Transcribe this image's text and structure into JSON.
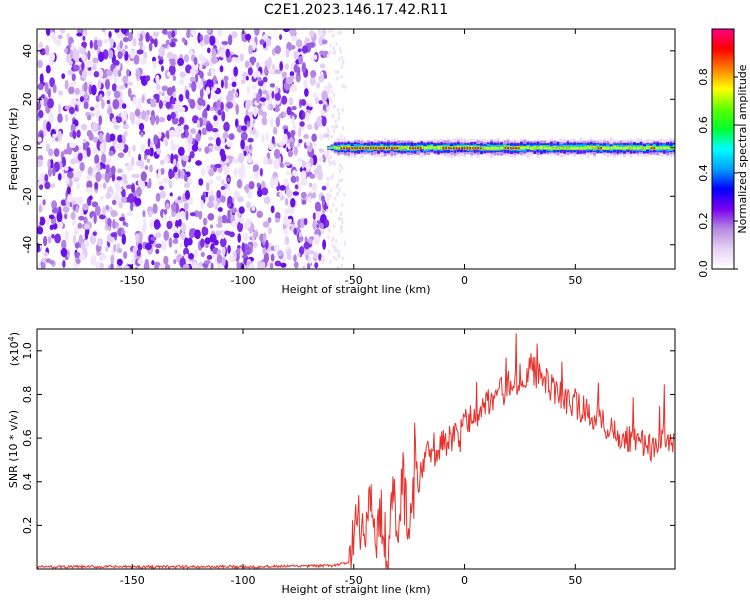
{
  "title": "C2E1.2023.146.17.42.R11",
  "chart_data": [
    {
      "type": "heatmap",
      "xlabel": "Height of straight line (km)",
      "ylabel": "Frequency (Hz)",
      "xlim": [
        -193,
        95
      ],
      "ylim": [
        -50,
        49
      ],
      "x_ticks": [
        -150,
        -100,
        -50,
        0,
        50
      ],
      "y_ticks": [
        -40,
        -20,
        0,
        20,
        40
      ],
      "noise_region_x": [
        -193,
        -62
      ],
      "signal_region_x": [
        -62,
        95
      ],
      "signal_frequency_hz": 0,
      "colorbar": {
        "label": "Normalized spectral amplitude",
        "range": [
          0.0,
          1.0
        ],
        "ticks": [
          "0.0",
          "0.2",
          "0.4",
          "0.6",
          "0.8"
        ],
        "colors": [
          "#ffffff",
          "#e8d2f5",
          "#b78be0",
          "#7a00ee",
          "#0000ff",
          "#00a0ff",
          "#00ffff",
          "#00ff30",
          "#60ff00",
          "#ffff00",
          "#ff8000",
          "#ff0000",
          "#ff0080"
        ]
      }
    },
    {
      "type": "line",
      "xlabel": "Height of straight line (km)",
      "ylabel": "SNR (10 * v/v)",
      "y_multiplier": "(x10",
      "y_multiplier_exp": "4",
      "y_multiplier_close": ")",
      "xlim": [
        -193,
        95
      ],
      "ylim": [
        0,
        1.1
      ],
      "x_ticks": [
        -150,
        -100,
        -50,
        0,
        50
      ],
      "y_ticks": [
        "0.2",
        "0.4",
        "0.6",
        "0.8",
        "1.0"
      ],
      "color": "#e8302a",
      "series": [
        {
          "x": [
            -193,
            -150,
            -100,
            -60,
            -52,
            -50,
            -48,
            -45,
            -42,
            -40,
            -38,
            -35,
            -32,
            -30,
            -28,
            -25,
            -22,
            -20,
            -18,
            -15,
            -12,
            -10,
            -8,
            -5,
            -2,
            0,
            3,
            6,
            9,
            12,
            15,
            18,
            20,
            22,
            24,
            26,
            28,
            30,
            32,
            35,
            38,
            40,
            45,
            50,
            55,
            60,
            65,
            70,
            75,
            80,
            85,
            90,
            95
          ],
          "y": [
            0.01,
            0.01,
            0.01,
            0.015,
            0.03,
            0.1,
            0.2,
            0.15,
            0.3,
            0.12,
            0.25,
            0.08,
            0.35,
            0.15,
            0.4,
            0.2,
            0.42,
            0.45,
            0.5,
            0.55,
            0.52,
            0.6,
            0.58,
            0.62,
            0.6,
            0.68,
            0.7,
            0.72,
            0.75,
            0.78,
            0.8,
            0.82,
            0.85,
            0.88,
            0.86,
            0.9,
            0.88,
            0.92,
            0.9,
            0.86,
            0.85,
            0.82,
            0.78,
            0.75,
            0.72,
            0.7,
            0.65,
            0.62,
            0.6,
            0.58,
            0.55,
            0.6,
            0.55
          ]
        }
      ]
    }
  ]
}
